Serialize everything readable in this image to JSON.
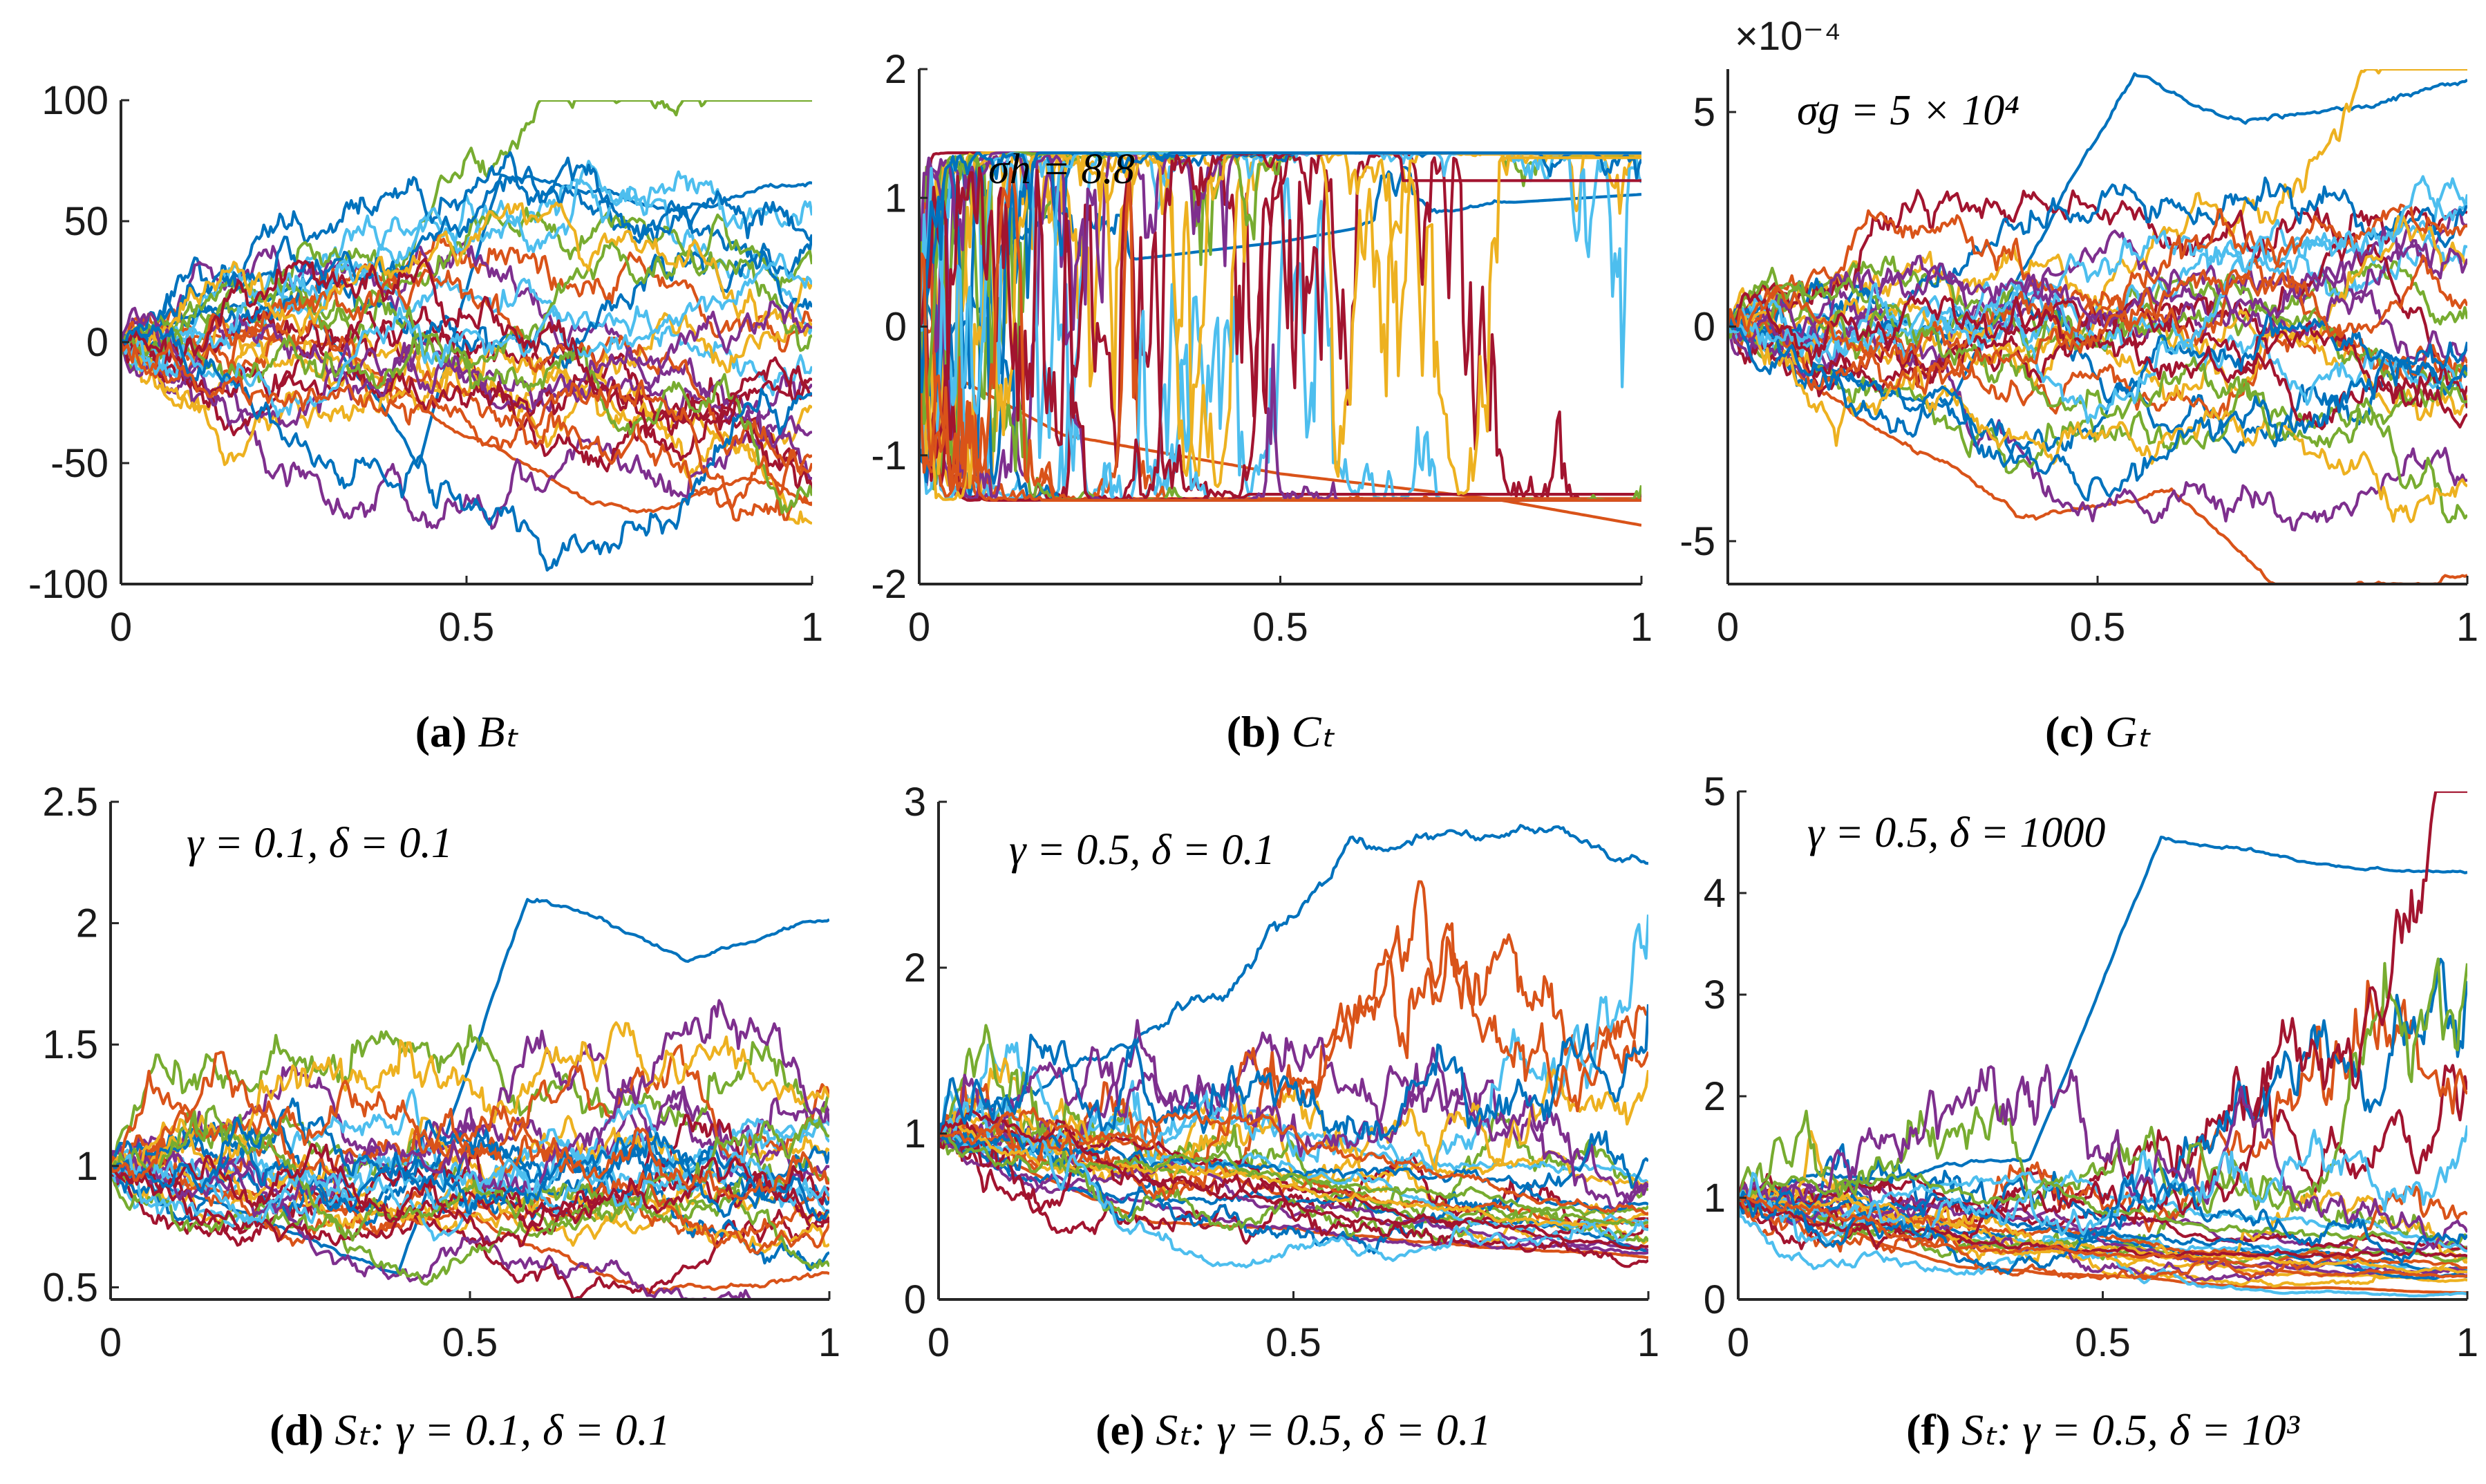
{
  "figure": {
    "colors": [
      "#0072BD",
      "#D95319",
      "#EDB120",
      "#7E2F8E",
      "#77AC30",
      "#4DBEEE",
      "#A2142F"
    ]
  },
  "chart_data": [
    {
      "type": "line",
      "panel": "a",
      "caption_label": "(a)",
      "caption_text": "Bₜ",
      "annotation": "",
      "exponent": "",
      "x_range": [
        0,
        1
      ],
      "y_range": [
        -100,
        100
      ],
      "x_ticks": [
        0,
        0.5,
        1
      ],
      "x_tick_labels": [
        "0",
        "0.5",
        "1"
      ],
      "y_ticks": [
        -100,
        -50,
        0,
        50,
        100
      ],
      "y_tick_labels": [
        "-100",
        "-50",
        "0",
        "50",
        "100"
      ],
      "series_count": 30,
      "process": "brownian",
      "start": 0,
      "scale": 44,
      "reference_series": [
        {
          "name": "highest path",
          "x": [
            0,
            0.25,
            0.43,
            0.55,
            0.65,
            0.8,
            1
          ],
          "y": [
            0,
            20,
            -55,
            65,
            60,
            55,
            65
          ]
        },
        {
          "name": "lowest path",
          "x": [
            0,
            0.3,
            0.5,
            0.65,
            0.75,
            0.9,
            1
          ],
          "y": [
            0,
            -5,
            -40,
            -65,
            -75,
            -60,
            -70
          ]
        }
      ]
    },
    {
      "type": "line",
      "panel": "b",
      "caption_label": "(b)",
      "caption_text": "Cₜ",
      "annotation": "σh = 8.8",
      "exponent": "",
      "x_range": [
        0,
        1
      ],
      "y_range": [
        -2,
        2
      ],
      "x_ticks": [
        0,
        0.5,
        1
      ],
      "x_tick_labels": [
        "0",
        "0.5",
        "1"
      ],
      "y_ticks": [
        -2,
        -1,
        0,
        1,
        2
      ],
      "y_tick_labels": [
        "-2",
        "-1",
        "0",
        "1",
        "2"
      ],
      "series_count": 30,
      "process": "bounded",
      "start": 0,
      "scale": 8.8,
      "reference_series": [
        {
          "name": "upper plateau",
          "x": [
            0,
            0.2,
            0.5,
            0.8,
            1
          ],
          "y": [
            0,
            0.7,
            0.9,
            1.2,
            1.27
          ]
        },
        {
          "name": "lower plateau",
          "x": [
            0,
            0.2,
            0.5,
            0.8,
            1
          ],
          "y": [
            0,
            -0.6,
            -0.9,
            -1.1,
            -1.3
          ]
        }
      ]
    },
    {
      "type": "line",
      "panel": "c",
      "caption_label": "(c)",
      "caption_text": "Gₜ",
      "annotation": "σg = 5 × 10⁴",
      "exponent": "×10⁻⁴",
      "x_range": [
        0,
        1
      ],
      "y_range": [
        -6,
        6
      ],
      "x_ticks": [
        0,
        0.5,
        1
      ],
      "x_tick_labels": [
        "0",
        "0.5",
        "1"
      ],
      "y_ticks": [
        -5,
        0,
        5
      ],
      "y_tick_labels": [
        "-5",
        "0",
        "5"
      ],
      "series_count": 30,
      "process": "brownian",
      "start": 0,
      "scale": 2.6,
      "reference_series": [
        {
          "name": "highest path",
          "x": [
            0,
            0.3,
            0.55,
            0.7,
            1
          ],
          "y": [
            0,
            -2,
            5.3,
            4.5,
            5.3
          ]
        },
        {
          "name": "lowest path",
          "x": [
            0,
            0.4,
            0.6,
            0.75,
            1
          ],
          "y": [
            0,
            -4.7,
            -3.5,
            -5.8,
            -5.5
          ]
        }
      ]
    },
    {
      "type": "line",
      "panel": "d",
      "caption_label": "(d)",
      "caption_text": "Sₜ: γ = 0.1, δ = 0.1",
      "annotation": "γ = 0.1,  δ = 0.1",
      "exponent": "",
      "x_range": [
        0,
        1
      ],
      "y_range": [
        0.45,
        2.5
      ],
      "x_ticks": [
        0,
        0.5,
        1
      ],
      "x_tick_labels": [
        "0",
        "0.5",
        "1"
      ],
      "y_ticks": [
        0.5,
        1,
        1.5,
        2,
        2.5
      ],
      "y_tick_labels": [
        "0.5",
        "1",
        "1.5",
        "2",
        "2.5"
      ],
      "series_count": 30,
      "process": "geometric",
      "start": 1,
      "scale": 0.42,
      "reference_series": [
        {
          "name": "highest path",
          "x": [
            0,
            0.4,
            0.58,
            0.8,
            1
          ],
          "y": [
            1,
            0.6,
            2.1,
            1.9,
            2.05
          ]
        },
        {
          "name": "lowest path",
          "x": [
            0,
            0.5,
            0.75,
            1
          ],
          "y": [
            1,
            0.7,
            0.45,
            0.5
          ]
        }
      ]
    },
    {
      "type": "line",
      "panel": "e",
      "caption_label": "(e)",
      "caption_text": "Sₜ: γ = 0.5, δ = 0.1",
      "annotation": "γ = 0.5,  δ = 0.1",
      "exponent": "",
      "x_range": [
        0,
        1
      ],
      "y_range": [
        0,
        3
      ],
      "x_ticks": [
        0,
        0.5,
        1
      ],
      "x_tick_labels": [
        "0",
        "0.5",
        "1"
      ],
      "y_ticks": [
        0,
        1,
        2,
        3
      ],
      "y_tick_labels": [
        "0",
        "1",
        "2",
        "3"
      ],
      "series_count": 30,
      "process": "mixed",
      "start": 1,
      "scale": 0.85,
      "reference_series": [
        {
          "name": "highest path",
          "x": [
            0,
            0.4,
            0.58,
            0.9,
            1
          ],
          "y": [
            1,
            1.6,
            2.6,
            2.7,
            2.6
          ]
        },
        {
          "name": "lowest path",
          "x": [
            0,
            0.3,
            0.7,
            1
          ],
          "y": [
            1,
            0.5,
            0.4,
            0.35
          ]
        }
      ]
    },
    {
      "type": "line",
      "panel": "f",
      "caption_label": "(f)",
      "caption_text": "Sₜ: γ = 0.5, δ = 10³",
      "annotation": "γ = 0.5,  δ = 1000",
      "exponent": "",
      "x_range": [
        0,
        1
      ],
      "y_range": [
        0,
        5
      ],
      "x_ticks": [
        0,
        0.5,
        1
      ],
      "x_tick_labels": [
        "0",
        "0.5",
        "1"
      ],
      "y_ticks": [
        0,
        1,
        2,
        3,
        4,
        5
      ],
      "y_tick_labels": [
        "0",
        "1",
        "2",
        "3",
        "4",
        "5"
      ],
      "series_count": 30,
      "process": "mixed",
      "start": 1,
      "scale": 1.15,
      "reference_series": [
        {
          "name": "highest path",
          "x": [
            0,
            0.4,
            0.58,
            0.9,
            1
          ],
          "y": [
            1,
            1.5,
            4.6,
            4.3,
            4.3
          ]
        },
        {
          "name": "lowest path",
          "x": [
            0,
            0.3,
            0.7,
            1
          ],
          "y": [
            1,
            0.4,
            0.25,
            0.2
          ]
        }
      ]
    }
  ]
}
